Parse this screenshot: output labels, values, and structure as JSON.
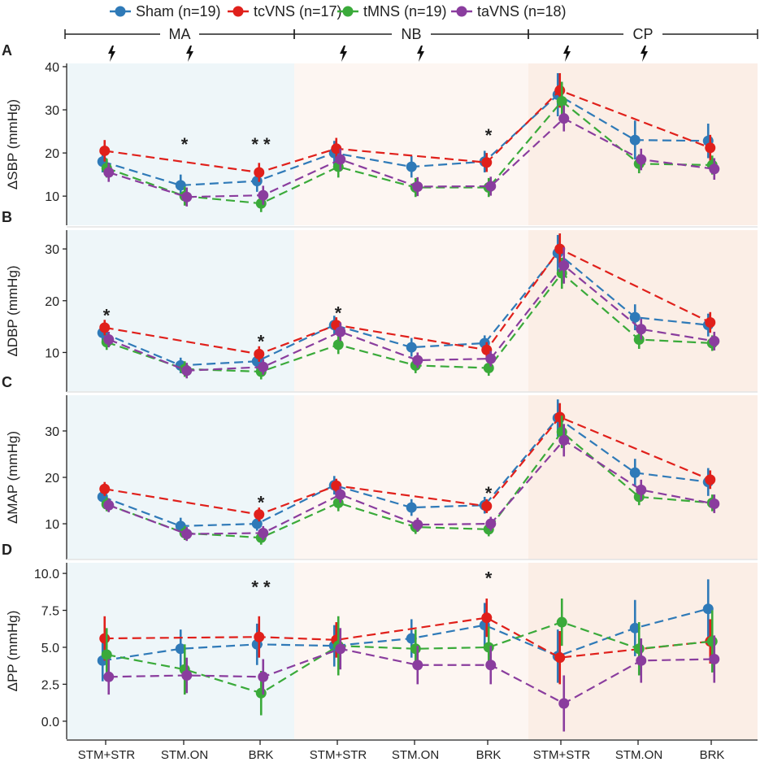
{
  "legend": [
    {
      "name": "Sham (n=19)",
      "color": "#2f7ab8"
    },
    {
      "name": "tcVNS (n=17)",
      "color": "#e0201b"
    },
    {
      "name": "tMNS (n=19)",
      "color": "#3aaa3a"
    },
    {
      "name": "taVNS (n=18)",
      "color": "#8a3d9e"
    }
  ],
  "phases": [
    {
      "label": "MA",
      "bg": "#eef6f9"
    },
    {
      "label": "NB",
      "bg": "#fdf6f2"
    },
    {
      "label": "CP",
      "bg": "#fbeee6"
    }
  ],
  "x_labels": [
    "STM+STR",
    "STM.ON",
    "BRK",
    "STM+STR",
    "STM.ON",
    "BRK",
    "STM+STR",
    "STM.ON",
    "BRK"
  ],
  "stim_icons": [
    0,
    1,
    3,
    4,
    6,
    7
  ],
  "chart_data": [
    {
      "type": "line",
      "panel": "A",
      "ylabel": "ΔSBP (mmHg)",
      "ylim": [
        4,
        40
      ],
      "yticks": [
        10,
        20,
        30,
        40
      ],
      "ytick_labels": [
        "10",
        "20",
        "30",
        "40"
      ],
      "categories": [
        "STM+STR",
        "STM.ON",
        "BRK",
        "STM+STR",
        "STM.ON",
        "BRK",
        "STM+STR",
        "STM.ON",
        "BRK"
      ],
      "series": [
        {
          "name": "Sham (n=19)",
          "values": [
            18,
            12.5,
            13.5,
            20,
            16.8,
            18,
            33.5,
            23,
            22.8
          ],
          "errors": [
            2.5,
            2.5,
            2.5,
            2.8,
            2.5,
            2.5,
            5,
            4.5,
            4
          ]
        },
        {
          "name": "tcVNS (n=17)",
          "values": [
            20.5,
            null,
            15.5,
            21,
            null,
            17.8,
            34.5,
            null,
            21.2
          ],
          "errors": [
            2.5,
            0,
            2.2,
            2.5,
            0,
            2.2,
            4,
            0,
            3
          ]
        },
        {
          "name": "tMNS (n=19)",
          "values": [
            16.5,
            10,
            8.3,
            16.8,
            12,
            12,
            32,
            17.5,
            17.2
          ],
          "errors": [
            2.2,
            2.2,
            2,
            2.5,
            2.2,
            2.2,
            4.5,
            2.2,
            2.2
          ]
        },
        {
          "name": "taVNS (n=18)",
          "values": [
            15.5,
            9.8,
            10.2,
            18.5,
            12.2,
            12.3,
            28,
            18.5,
            16.3
          ],
          "errors": [
            2.2,
            2.2,
            2.2,
            2.5,
            2.2,
            2.2,
            3,
            2.5,
            2.5
          ]
        }
      ],
      "annotations": [
        {
          "category_index": 1,
          "text": "*",
          "y": 22.5
        },
        {
          "category_index": 2,
          "text": "* *",
          "y": 22.5
        },
        {
          "category_index": 5,
          "text": "*",
          "y": 24.5
        }
      ]
    },
    {
      "type": "line",
      "panel": "B",
      "ylabel": "ΔDBP (mmHg)",
      "ylim": [
        3,
        33
      ],
      "yticks": [
        10,
        20,
        30
      ],
      "ytick_labels": [
        "10",
        "20",
        "30"
      ],
      "categories": [
        "STM+STR",
        "STM.ON",
        "BRK",
        "STM+STR",
        "STM.ON",
        "BRK",
        "STM+STR",
        "STM.ON",
        "BRK"
      ],
      "series": [
        {
          "name": "Sham (n=19)",
          "values": [
            13.8,
            7.5,
            8.3,
            15.3,
            11,
            11.8,
            29.2,
            16.8,
            15.3
          ],
          "errors": [
            1.5,
            1.5,
            1.5,
            1.8,
            1.8,
            1.5,
            3.5,
            2.5,
            2.2
          ]
        },
        {
          "name": "tcVNS (n=17)",
          "values": [
            14.8,
            null,
            9.7,
            15.3,
            null,
            10.5,
            30,
            null,
            15.8
          ],
          "errors": [
            1.5,
            0,
            1.5,
            1.5,
            0,
            1.5,
            3,
            0,
            2
          ]
        },
        {
          "name": "tMNS (n=19)",
          "values": [
            12,
            6.8,
            6.3,
            11.5,
            7.5,
            7,
            25.3,
            12.5,
            11.8
          ],
          "errors": [
            1.5,
            1.5,
            1.5,
            1.8,
            1.5,
            1.5,
            3,
            1.8,
            1.5
          ]
        },
        {
          "name": "taVNS (n=18)",
          "values": [
            12.5,
            6.5,
            7.2,
            14,
            8.5,
            8.8,
            26.8,
            14.5,
            12.2
          ],
          "errors": [
            1.5,
            1.5,
            1.5,
            1.8,
            1.5,
            1.5,
            3.5,
            2,
            1.8
          ]
        }
      ],
      "annotations": [
        {
          "category_index": 0,
          "text": "*",
          "y": 17.5
        },
        {
          "category_index": 2,
          "text": "*",
          "y": 12.5
        },
        {
          "category_index": 3,
          "text": "*",
          "y": 18
        }
      ]
    },
    {
      "type": "line",
      "panel": "C",
      "ylabel": "ΔMAP (mmHg)",
      "ylim": [
        3,
        37
      ],
      "yticks": [
        10,
        20,
        30
      ],
      "ytick_labels": [
        "10",
        "20",
        "30"
      ],
      "categories": [
        "STM+STR",
        "STM.ON",
        "BRK",
        "STM+STR",
        "STM.ON",
        "BRK",
        "STM+STR",
        "STM.ON",
        "BRK"
      ],
      "series": [
        {
          "name": "Sham (n=19)",
          "values": [
            15.8,
            9.5,
            10,
            18.3,
            13.5,
            14,
            32.8,
            21,
            19
          ],
          "errors": [
            1.5,
            1.8,
            1.5,
            2,
            1.8,
            1.8,
            4,
            3,
            3
          ]
        },
        {
          "name": "tcVNS (n=17)",
          "values": [
            17.5,
            null,
            12,
            18.2,
            null,
            13.8,
            33,
            null,
            19.5
          ],
          "errors": [
            1.5,
            0,
            1.5,
            1.5,
            0,
            1.5,
            3,
            0,
            2
          ]
        },
        {
          "name": "tMNS (n=19)",
          "values": [
            14.2,
            8,
            7,
            14.5,
            9.3,
            8.8,
            29.8,
            15.8,
            14.5
          ],
          "errors": [
            1.5,
            1.5,
            1.5,
            1.8,
            1.5,
            1.5,
            3.5,
            1.8,
            1.8
          ]
        },
        {
          "name": "taVNS (n=18)",
          "values": [
            14,
            7.8,
            8,
            16.3,
            9.8,
            10,
            28,
            17.3,
            14.3
          ],
          "errors": [
            1.5,
            1.5,
            1.5,
            1.8,
            1.5,
            1.5,
            3.5,
            2.2,
            2
          ]
        }
      ],
      "annotations": [
        {
          "category_index": 2,
          "text": "*",
          "y": 15
        },
        {
          "category_index": 5,
          "text": "*",
          "y": 17
        }
      ]
    },
    {
      "type": "line",
      "panel": "D",
      "ylabel": "ΔPP (mmHg)",
      "ylim": [
        -1,
        10.5
      ],
      "yticks": [
        0,
        2.5,
        5,
        7.5,
        10
      ],
      "ytick_labels": [
        "0.0",
        "2.5",
        "5.0",
        "7.5",
        "10.0"
      ],
      "categories": [
        "STM+STR",
        "STM.ON",
        "BRK",
        "STM+STR",
        "STM.ON",
        "BRK",
        "STM+STR",
        "STM.ON",
        "BRK"
      ],
      "series": [
        {
          "name": "Sham (n=19)",
          "values": [
            4.1,
            4.9,
            5.2,
            5.1,
            5.6,
            6.5,
            4.4,
            6.3,
            7.6
          ],
          "errors": [
            1.4,
            1.3,
            1.4,
            1.4,
            1.3,
            1.5,
            1.8,
            1.9,
            2
          ]
        },
        {
          "name": "tcVNS (n=17)",
          "values": [
            5.6,
            null,
            5.7,
            5.5,
            null,
            7,
            4.3,
            null,
            5.4
          ],
          "errors": [
            1.5,
            0,
            1.4,
            1.2,
            0,
            1.3,
            1.8,
            0,
            1.5
          ]
        },
        {
          "name": "tMNS (n=19)",
          "values": [
            4.5,
            3.5,
            1.9,
            5.1,
            4.9,
            5,
            6.7,
            4.9,
            5.4
          ],
          "errors": [
            1.8,
            1.7,
            1.5,
            2,
            1.3,
            1.4,
            1.6,
            1.8,
            2.1
          ]
        },
        {
          "name": "taVNS (n=18)",
          "values": [
            3,
            3.1,
            3,
            4.9,
            3.8,
            3.8,
            1.2,
            4.1,
            4.2
          ],
          "errors": [
            1.2,
            1.2,
            1.2,
            1.4,
            1.3,
            1.3,
            1.9,
            1.5,
            1.6
          ]
        }
      ],
      "annotations": [
        {
          "category_index": 2,
          "text": "* *",
          "y": 9.2
        },
        {
          "category_index": 5,
          "text": "*",
          "y": 9.8
        }
      ]
    }
  ]
}
